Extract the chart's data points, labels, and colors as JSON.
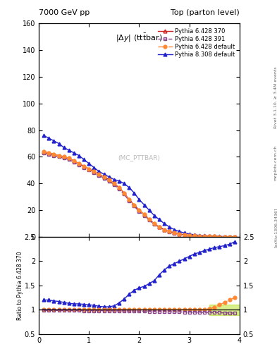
{
  "title_left": "7000 GeV pp",
  "title_right": "Top (parton level)",
  "ylabel_ratio": "Ratio to Pythia 6.428 370",
  "watermark": "(MC_PTTBAR)",
  "right_label_top": "Rivet 3.1.10, ≥ 3.4M events",
  "right_label_bottom": "[arXiv:1306.3436]",
  "right_label_url": "mcplots.cern.ch",
  "x_main": [
    0.1,
    0.2,
    0.3,
    0.4,
    0.5,
    0.6,
    0.7,
    0.8,
    0.9,
    1.0,
    1.1,
    1.2,
    1.3,
    1.4,
    1.5,
    1.6,
    1.7,
    1.8,
    1.9,
    2.0,
    2.1,
    2.2,
    2.3,
    2.4,
    2.5,
    2.6,
    2.7,
    2.8,
    2.9,
    3.0,
    3.1,
    3.2,
    3.3,
    3.4,
    3.5,
    3.6,
    3.7,
    3.8,
    3.9
  ],
  "y_p6_370": [
    64,
    63,
    62,
    61,
    60,
    59,
    57,
    55,
    53,
    51,
    49,
    47,
    45,
    43,
    40,
    37,
    33,
    28,
    24,
    20,
    17,
    13,
    10,
    7.5,
    5.5,
    4.0,
    3.0,
    2.2,
    1.6,
    1.2,
    0.9,
    0.7,
    0.5,
    0.4,
    0.3,
    0.2,
    0.15,
    0.1,
    0.08
  ],
  "y_p6_391": [
    63,
    62,
    61,
    60,
    59,
    58,
    56,
    54,
    52,
    50,
    48,
    46,
    44,
    42,
    39,
    36,
    32,
    27,
    23,
    19,
    16,
    12.5,
    9.5,
    7.2,
    5.2,
    3.8,
    2.8,
    2.1,
    1.5,
    1.1,
    0.85,
    0.65,
    0.48,
    0.36,
    0.27,
    0.2,
    0.14,
    0.1,
    0.07
  ],
  "y_p6_def": [
    64,
    63,
    62,
    61,
    60,
    59,
    57,
    55,
    53,
    51,
    49,
    47,
    45,
    43,
    40,
    37,
    33,
    28,
    24,
    20,
    17,
    13,
    10,
    7.5,
    5.5,
    4.0,
    3.0,
    2.2,
    1.6,
    1.2,
    0.9,
    0.7,
    0.5,
    0.4,
    0.3,
    0.22,
    0.16,
    0.12,
    0.09
  ],
  "y_p8_def": [
    76,
    74,
    72,
    70,
    67,
    65,
    63,
    61,
    58,
    55,
    52,
    49,
    47,
    45,
    43,
    42,
    40,
    37,
    33,
    28,
    24,
    20,
    16,
    13,
    10,
    7.5,
    5.5,
    4.0,
    3.0,
    2.2,
    1.6,
    1.2,
    0.9,
    0.65,
    0.48,
    0.35,
    0.25,
    0.18,
    0.13
  ],
  "ratio_p6_391": [
    0.985,
    0.985,
    0.985,
    0.984,
    0.984,
    0.983,
    0.982,
    0.982,
    0.981,
    0.98,
    0.98,
    0.979,
    0.979,
    0.978,
    0.977,
    0.976,
    0.975,
    0.974,
    0.972,
    0.97,
    0.968,
    0.966,
    0.963,
    0.961,
    0.959,
    0.957,
    0.955,
    0.954,
    0.952,
    0.95,
    0.948,
    0.946,
    0.944,
    0.942,
    0.94,
    0.938,
    0.935,
    0.932,
    0.93
  ],
  "ratio_p6_def": [
    1.0,
    1.0,
    1.0,
    1.0,
    1.0,
    1.0,
    1.0,
    1.0,
    1.0,
    1.0,
    1.0,
    1.0,
    1.0,
    1.0,
    1.0,
    1.0,
    1.0,
    1.0,
    1.0,
    1.0,
    1.0,
    1.0,
    1.0,
    1.0,
    1.0,
    1.0,
    1.0,
    1.0,
    1.0,
    1.0,
    1.0,
    1.0,
    1.0,
    1.02,
    1.05,
    1.1,
    1.15,
    1.2,
    1.25
  ],
  "ratio_p8_def": [
    1.2,
    1.2,
    1.18,
    1.17,
    1.15,
    1.13,
    1.12,
    1.12,
    1.11,
    1.1,
    1.09,
    1.07,
    1.06,
    1.06,
    1.08,
    1.14,
    1.22,
    1.32,
    1.4,
    1.45,
    1.48,
    1.54,
    1.6,
    1.72,
    1.82,
    1.9,
    1.95,
    2.0,
    2.05,
    2.1,
    2.15,
    2.18,
    2.22,
    2.25,
    2.28,
    2.3,
    2.32,
    2.35,
    2.4
  ],
  "color_p6_370": "#cc2222",
  "color_p6_391": "#884488",
  "color_p6_def": "#ff8833",
  "color_p8_def": "#2222cc",
  "ylim_main": [
    0,
    160
  ],
  "ylim_ratio": [
    0.5,
    2.5
  ],
  "xlim": [
    0,
    4
  ],
  "yticks_main": [
    0,
    20,
    40,
    60,
    80,
    100,
    120,
    140,
    160
  ],
  "yticks_ratio": [
    0.5,
    1.0,
    1.5,
    2.0,
    2.5
  ],
  "xticks": [
    0,
    1,
    2,
    3,
    4
  ],
  "legend_entries": [
    "Pythia 6.428 370",
    "Pythia 6.428 391",
    "Pythia 6.428 default",
    "Pythia 8.308 default"
  ],
  "ref_band_color": "#aadd00",
  "ref_band_alpha": 0.45,
  "ref_band_xlo": 3.4,
  "ref_band_xhi": 4.0,
  "ref_band_ylo": 0.88,
  "ref_band_yhi": 1.1
}
